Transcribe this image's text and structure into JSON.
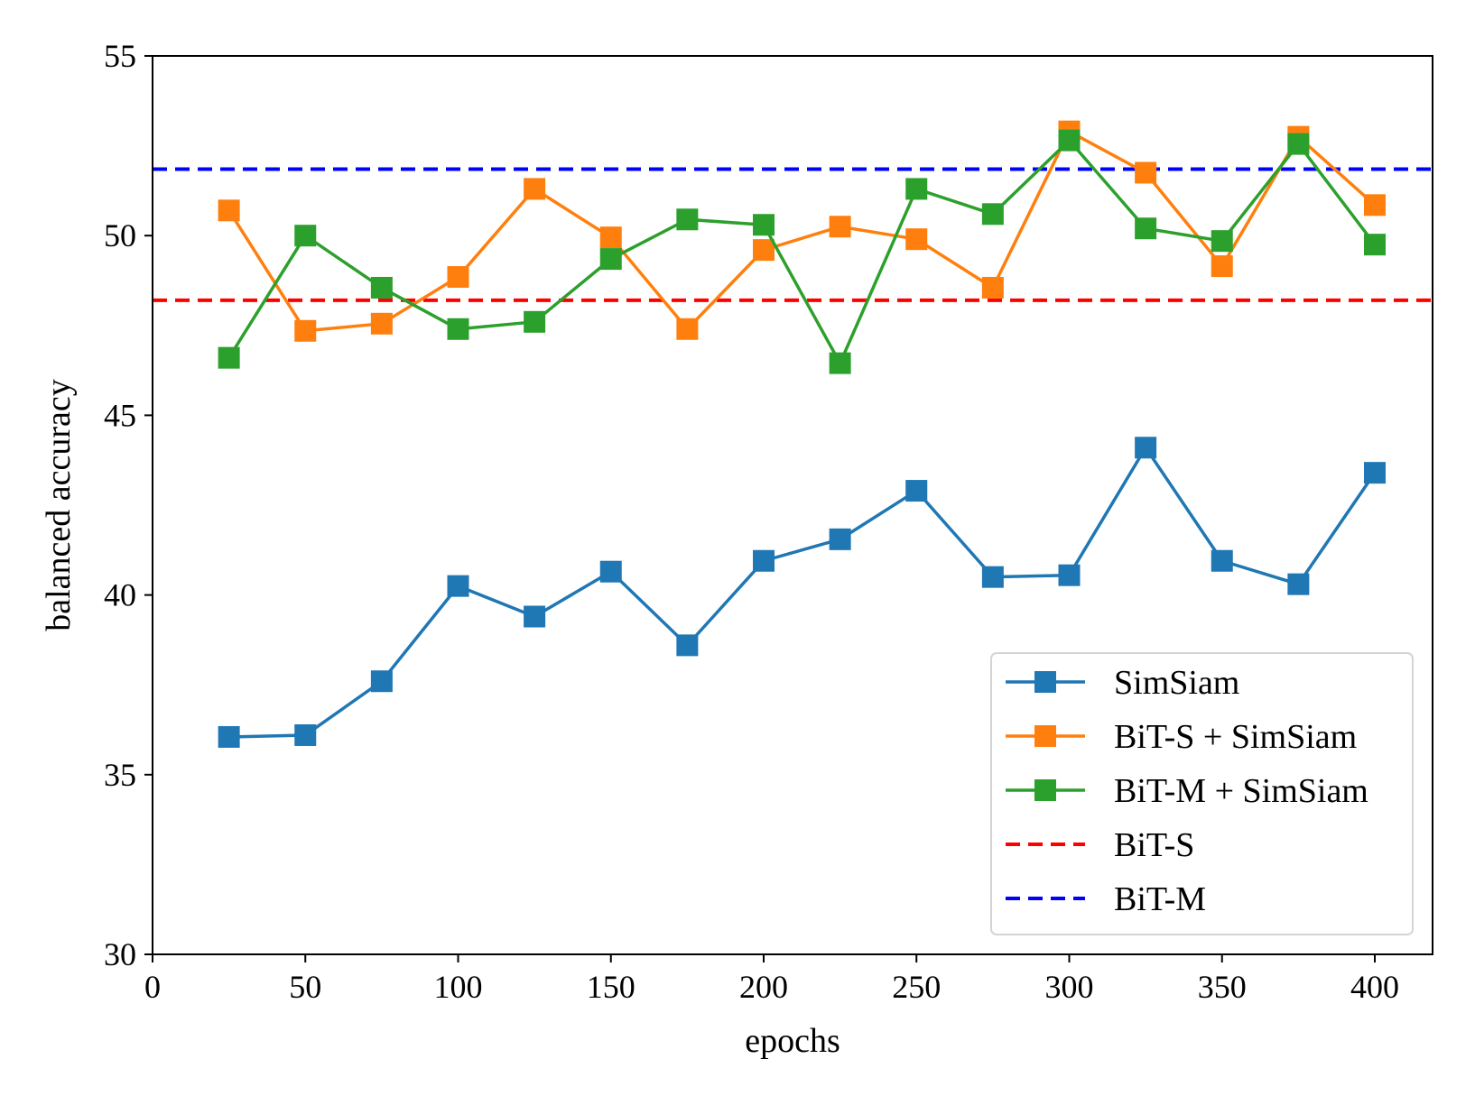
{
  "chart_data": {
    "type": "line",
    "title": "",
    "xlabel": "epochs",
    "ylabel": "balanced accuracy",
    "xlim": [
      0,
      420
    ],
    "ylim": [
      30,
      55
    ],
    "xticks": [
      0,
      50,
      100,
      150,
      200,
      250,
      300,
      350,
      400
    ],
    "yticks": [
      30,
      35,
      40,
      45,
      50,
      55
    ],
    "grid": false,
    "legend_position": "lower-right",
    "x": [
      25,
      50,
      75,
      100,
      125,
      150,
      175,
      200,
      225,
      250,
      275,
      300,
      325,
      350,
      375,
      400
    ],
    "series": [
      {
        "name": "SimSiam",
        "color": "#1f77b4",
        "style": "solid",
        "marker": "square",
        "values": [
          36.05,
          36.1,
          37.6,
          40.25,
          39.4,
          40.65,
          38.6,
          40.95,
          41.55,
          42.9,
          40.5,
          40.55,
          44.1,
          40.95,
          40.3,
          43.4
        ]
      },
      {
        "name": "BiT-S + SimSiam",
        "color": "#ff7f0e",
        "style": "solid",
        "marker": "square",
        "values": [
          50.7,
          47.35,
          47.55,
          48.85,
          51.3,
          49.95,
          47.4,
          49.6,
          50.25,
          49.9,
          48.55,
          52.9,
          51.75,
          49.15,
          52.75,
          50.85
        ]
      },
      {
        "name": "BiT-M + SimSiam",
        "color": "#2ca02c",
        "style": "solid",
        "marker": "square",
        "values": [
          46.6,
          50.0,
          48.55,
          47.4,
          47.6,
          49.35,
          50.45,
          50.3,
          46.45,
          51.3,
          50.6,
          52.65,
          50.2,
          49.85,
          52.55,
          49.75
        ]
      },
      {
        "name": "BiT-S",
        "color": "#ff0000",
        "style": "dashed",
        "marker": "none",
        "constant": 48.2
      },
      {
        "name": "BiT-M",
        "color": "#0000ff",
        "style": "dashed",
        "marker": "none",
        "constant": 51.85
      }
    ]
  }
}
